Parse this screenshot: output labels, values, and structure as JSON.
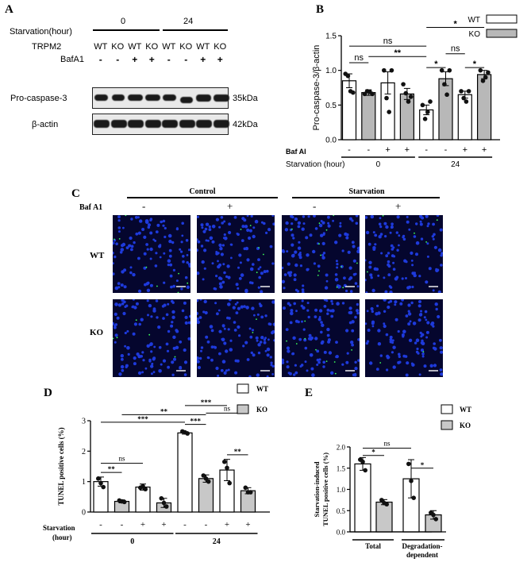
{
  "panel_labels": {
    "a": "A",
    "b": "B",
    "c": "C",
    "d": "D",
    "e": "E"
  },
  "panel_a": {
    "starvation_label": "Starvation(hour)",
    "starv_0": "0",
    "starv_24": "24",
    "trpm2_label": "TRPM2",
    "genotypes": [
      "WT",
      "KO",
      "WT",
      "KO",
      "WT",
      "KO",
      "WT",
      "KO"
    ],
    "bafa1_label": "BafA1",
    "bafa1": [
      "-",
      "-",
      "+",
      "+",
      "-",
      "-",
      "+",
      "+"
    ],
    "row1_label": "Pro-caspase-3",
    "row1_kda": "35kDa",
    "row2_label": "β-actin",
    "row2_kda": "42kDa",
    "colors": {
      "blot_bg": "#e9e9e9",
      "band": "#1a1a1a"
    }
  },
  "panel_c": {
    "control_label": "Control",
    "starvation_label": "Starvation",
    "bafa1_label": "Baf A1",
    "bafa1": [
      "-",
      "+",
      "-",
      "+"
    ],
    "row_labels": [
      "WT",
      "KO"
    ],
    "colors": {
      "background": "#05062e",
      "nuclei": "#1e3adc",
      "tunel": "#3cff5a"
    }
  },
  "chart_data": [
    {
      "id": "B",
      "type": "bar",
      "ylabel": "Pro-caspase-3/β-actin",
      "ylim": [
        0,
        1.5
      ],
      "yticks": [
        "0.0",
        "0.5",
        "1.0",
        "1.5"
      ],
      "legend": [
        "WT",
        "KO"
      ],
      "legend_placement": "top-right",
      "colors": {
        "WT": "#ffffff",
        "KO": "#b8b8b8"
      },
      "x_rows": {
        "baf_label": "Baf Al",
        "baf": [
          "-",
          "-",
          "+",
          "+",
          "-",
          "-",
          "+",
          "+"
        ],
        "starvation_label": "Starvation (hour)",
        "groups": [
          "0",
          "24"
        ]
      },
      "groups": [
        "WT",
        "KO",
        "WT",
        "KO",
        "WT",
        "KO",
        "WT",
        "KO"
      ],
      "values": [
        0.85,
        0.68,
        0.82,
        0.66,
        0.43,
        0.88,
        0.65,
        0.94
      ],
      "errors": [
        0.1,
        0.04,
        0.16,
        0.08,
        0.07,
        0.1,
        0.05,
        0.06
      ],
      "points": [
        [
          0.95,
          0.92,
          0.7,
          0.68
        ],
        [
          0.66,
          0.7,
          0.69,
          0.66
        ],
        [
          1.0,
          0.6,
          0.4,
          1.0
        ],
        [
          0.8,
          0.67,
          0.55,
          0.62
        ],
        [
          0.5,
          0.3,
          0.4,
          0.55
        ],
        [
          1.0,
          0.8,
          0.65,
          1.0
        ],
        [
          0.7,
          0.6,
          0.55,
          0.7
        ],
        [
          1.0,
          0.85,
          0.9,
          0.97
        ]
      ],
      "significance": [
        {
          "text": "ns",
          "from": 0,
          "to": 1,
          "y": 1.11
        },
        {
          "text": "ns",
          "from": 0,
          "to": 4,
          "y": 1.35
        },
        {
          "text": "**",
          "from": 1,
          "to": 4,
          "y": 1.2
        },
        {
          "text": "*",
          "from": 4,
          "to": 5,
          "y": 1.04
        },
        {
          "text": "*",
          "from": 4,
          "to": 7,
          "y": 1.62
        },
        {
          "text": "ns",
          "from": 5,
          "to": 6,
          "y": 1.24
        },
        {
          "text": "*",
          "from": 6,
          "to": 7,
          "y": 1.04
        }
      ]
    },
    {
      "id": "D",
      "type": "bar",
      "ylabel": "TUNEL positive cells (%)",
      "ylim": [
        0,
        3
      ],
      "yticks": [
        "0",
        "1",
        "2",
        "3"
      ],
      "legend": [
        "WT",
        "KO"
      ],
      "colors": {
        "WT": "#ffffff",
        "KO": "#c8c8c8"
      },
      "x_rows": {
        "starv": [
          "-",
          "-",
          "+",
          "+",
          "-",
          "-",
          "+",
          "+"
        ],
        "starvation_label": "Starvation",
        "hour_label": "(hour)",
        "groups": [
          "0",
          "24"
        ]
      },
      "groups": [
        "WT",
        "KO",
        "WT",
        "KO",
        "WT",
        "KO",
        "WT",
        "KO"
      ],
      "values": [
        1.0,
        0.35,
        0.82,
        0.3,
        2.6,
        1.1,
        1.38,
        0.7
      ],
      "errors": [
        0.15,
        0.05,
        0.1,
        0.15,
        0.04,
        0.12,
        0.35,
        0.1
      ],
      "points": [
        [
          1.1,
          0.95,
          0.82
        ],
        [
          0.38,
          0.35,
          0.33
        ],
        [
          0.8,
          0.85,
          0.75
        ],
        [
          0.45,
          0.3,
          0.18
        ],
        [
          2.65,
          2.62,
          2.58
        ],
        [
          1.2,
          1.1,
          1.0
        ],
        [
          1.65,
          1.45,
          0.95
        ],
        [
          0.8,
          0.65,
          0.65
        ]
      ],
      "significance": [
        {
          "text": "**",
          "from": 0,
          "to": 1,
          "y": 1.3
        },
        {
          "text": "ns",
          "from": 0,
          "to": 2,
          "y": 1.6
        },
        {
          "text": "***",
          "from": 0,
          "to": 4,
          "y": 2.95
        },
        {
          "text": "**",
          "from": 1,
          "to": 5,
          "y": 3.2
        },
        {
          "text": "***",
          "from": 4,
          "to": 5,
          "y": 2.88
        },
        {
          "text": "***",
          "from": 4,
          "to": 6,
          "y": 3.5
        },
        {
          "text": "ns",
          "from": 5,
          "to": 7,
          "y": 3.25
        },
        {
          "text": "**",
          "from": 6,
          "to": 7,
          "y": 1.88
        }
      ]
    },
    {
      "id": "E",
      "type": "bar",
      "ylabel": "Starvation-induced TUNEL positive cells (%)",
      "ylabel_lines": [
        "Starvation-induced",
        "TUNEL positive cells (%)"
      ],
      "ylim": [
        0,
        2.0
      ],
      "yticks": [
        "0.0",
        "0.5",
        "1.0",
        "1.5",
        "2.0"
      ],
      "legend": [
        "WT",
        "KO"
      ],
      "colors": {
        "WT": "#ffffff",
        "KO": "#c8c8c8"
      },
      "categories": [
        "Total",
        "Degradation-dependent"
      ],
      "category_lines": [
        [
          "Total"
        ],
        [
          "Degradation-",
          "dependent"
        ]
      ],
      "series": [
        {
          "name": "WT",
          "values": [
            1.6,
            1.25
          ],
          "errors": [
            0.15,
            0.45
          ],
          "points": [
            [
              1.7,
              1.65,
              1.45
            ],
            [
              1.6,
              1.2,
              0.8
            ]
          ]
        },
        {
          "name": "KO",
          "values": [
            0.7,
            0.4
          ],
          "errors": [
            0.06,
            0.1
          ],
          "points": [
            [
              0.75,
              0.68,
              0.65
            ],
            [
              0.45,
              0.4,
              0.3
            ]
          ]
        }
      ],
      "significance": [
        {
          "text": "ns",
          "from": 0,
          "to": 2,
          "y": 1.97
        },
        {
          "text": "*",
          "from": 0,
          "to": 1,
          "y": 1.8
        },
        {
          "text": "*",
          "from": 2,
          "to": 3,
          "y": 1.5
        }
      ]
    }
  ]
}
